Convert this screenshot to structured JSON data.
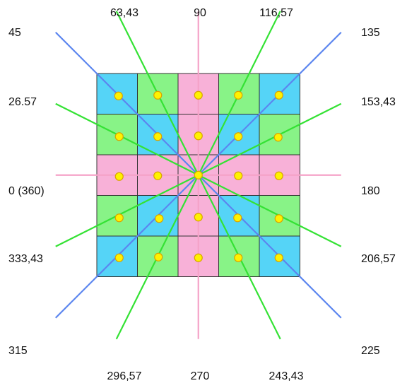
{
  "grid": {
    "rows": [
      [
        "blue",
        "green",
        "pink",
        "green",
        "blue"
      ],
      [
        "green",
        "blue",
        "pink",
        "blue",
        "green"
      ],
      [
        "pink",
        "pink",
        "pink",
        "pink",
        "pink"
      ],
      [
        "green",
        "blue",
        "pink",
        "blue",
        "green"
      ],
      [
        "blue",
        "green",
        "pink",
        "green",
        "blue"
      ]
    ]
  },
  "colors": {
    "blue": "#55d4f7",
    "green": "#88f387",
    "pink": "#f8b1d8",
    "cell_border": "#333333",
    "dot_fill": "#fff200",
    "dot_stroke": "#d9a300",
    "line_blue": "#5b85ef",
    "line_green": "#34e234",
    "line_pink": "#f5a3c8"
  },
  "angles": [
    {
      "label": "0 (360)",
      "degrees": 0,
      "color": "pink"
    },
    {
      "label": "26.57",
      "degrees": 26.57,
      "color": "green"
    },
    {
      "label": "45",
      "degrees": 45,
      "color": "blue"
    },
    {
      "label": "63,43",
      "degrees": 63.43,
      "color": "green"
    },
    {
      "label": "90",
      "degrees": 90,
      "color": "pink"
    },
    {
      "label": "116,57",
      "degrees": 116.57,
      "color": "green"
    },
    {
      "label": "135",
      "degrees": 135,
      "color": "blue"
    },
    {
      "label": "153,43",
      "degrees": 153.43,
      "color": "green"
    },
    {
      "label": "180",
      "degrees": 180,
      "color": "pink"
    },
    {
      "label": "206,57",
      "degrees": 206.57,
      "color": "green"
    },
    {
      "label": "225",
      "degrees": 225,
      "color": "blue"
    },
    {
      "label": "243,43",
      "degrees": 243.43,
      "color": "green"
    },
    {
      "label": "270",
      "degrees": 270,
      "color": "pink"
    },
    {
      "label": "296,57",
      "degrees": 296.57,
      "color": "green"
    },
    {
      "label": "315",
      "degrees": 315,
      "color": "blue"
    },
    {
      "label": "333,43",
      "degrees": 333.43,
      "color": "green"
    }
  ]
}
